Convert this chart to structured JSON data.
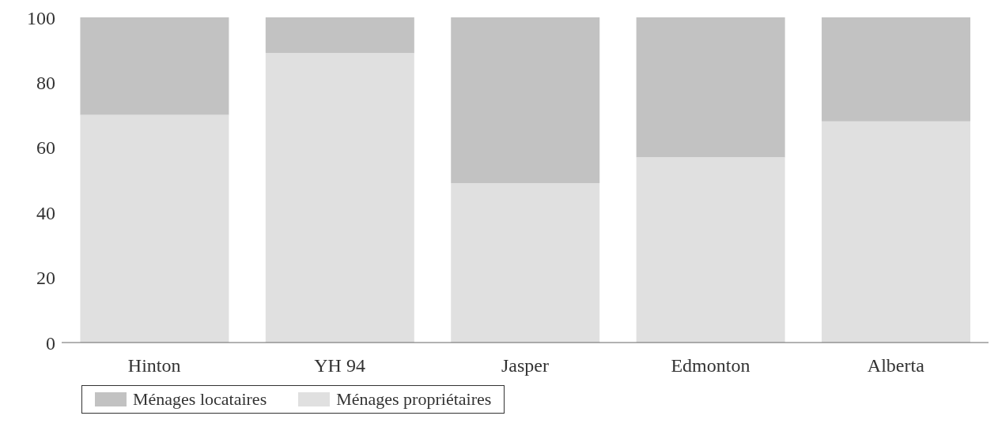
{
  "chart_data": {
    "type": "bar",
    "stacked": true,
    "categories": [
      "Hinton",
      "YH 94",
      "Jasper",
      "Edmonton",
      "Alberta"
    ],
    "series": [
      {
        "name": "Ménages propriétaires",
        "color": "#e0e0e0",
        "values": [
          70,
          89,
          49,
          57,
          68
        ]
      },
      {
        "name": "Ménages locataires",
        "color": "#c2c2c2",
        "values": [
          30,
          11,
          51,
          43,
          32
        ]
      }
    ],
    "ylim": [
      0,
      100
    ],
    "yticks": [
      0,
      20,
      40,
      60,
      80,
      100
    ],
    "grid": false,
    "legend": "bottom left"
  }
}
